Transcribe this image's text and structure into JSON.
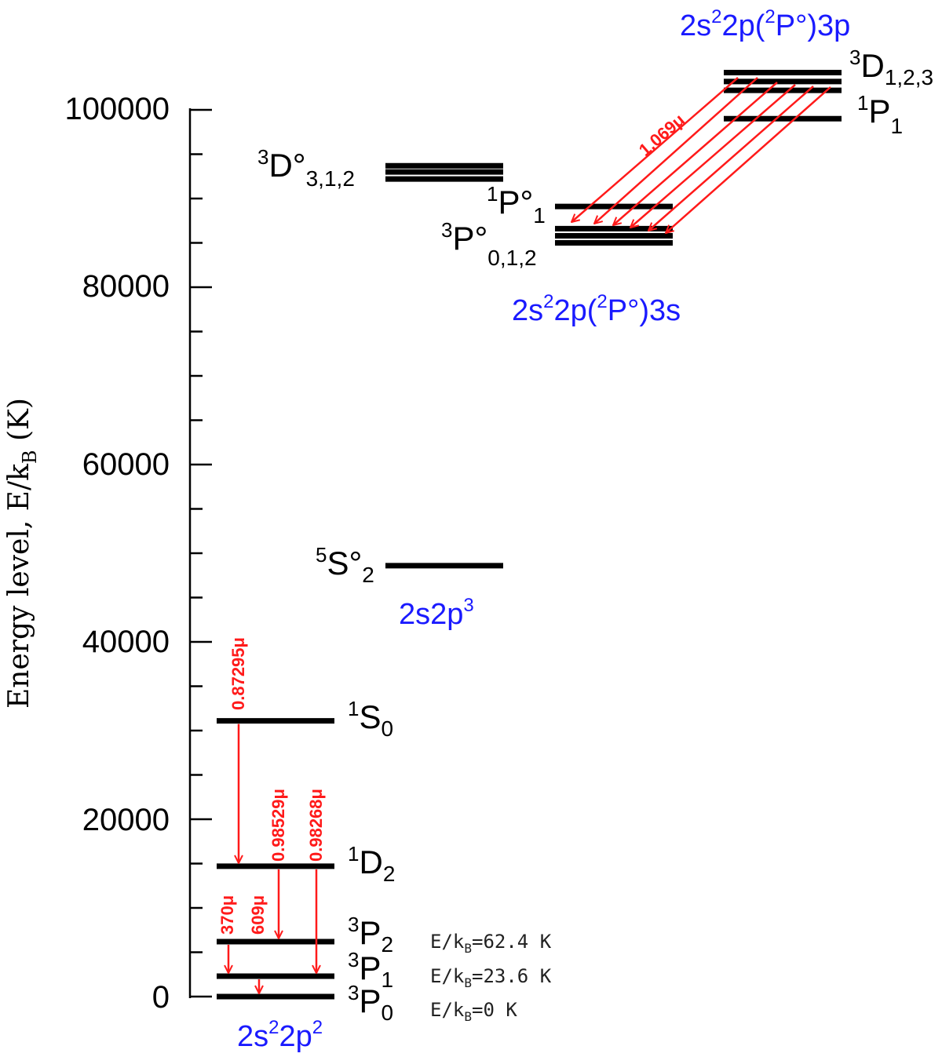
{
  "axis": {
    "ylabel_main": "Energy level, E/k",
    "ylabel_sub": "B",
    "ylabel_unit": " (K)",
    "ticks": [
      "0",
      "20000",
      "40000",
      "60000",
      "80000",
      "100000"
    ],
    "tick_values": [
      0,
      20000,
      40000,
      60000,
      80000,
      100000
    ],
    "ymin": 0,
    "ymax": 100000,
    "minor_step": 5000
  },
  "colors": {
    "level": "#000000",
    "transition": "#ff1a1a",
    "config": "#1a1aff"
  },
  "levels": [
    {
      "id": "3P0",
      "energy": 0,
      "group": "ground"
    },
    {
      "id": "3P1",
      "energy": 2300,
      "group": "ground"
    },
    {
      "id": "3P2",
      "energy": 6200,
      "group": "ground"
    },
    {
      "id": "1D2",
      "energy": 14700,
      "group": "ground"
    },
    {
      "id": "1S0",
      "energy": 31100,
      "group": "ground"
    },
    {
      "id": "5S2",
      "energy": 48600,
      "group": "sp3"
    },
    {
      "id": "3D3",
      "energy": 92200,
      "group": "sp3"
    },
    {
      "id": "3D1",
      "energy": 93000,
      "group": "sp3"
    },
    {
      "id": "3D2",
      "energy": 93700,
      "group": "sp3"
    },
    {
      "id": "3s_a",
      "energy": 85000,
      "group": "3s"
    },
    {
      "id": "3s_b",
      "energy": 85800,
      "group": "3s"
    },
    {
      "id": "3s_c",
      "energy": 86600,
      "group": "3s"
    },
    {
      "id": "1P1_3s",
      "energy": 89100,
      "group": "3s"
    },
    {
      "id": "1P1_3p",
      "energy": 99000,
      "group": "3p"
    },
    {
      "id": "3p_a",
      "energy": 102200,
      "group": "3p"
    },
    {
      "id": "3p_b",
      "energy": 103200,
      "group": "3p"
    },
    {
      "id": "3p_c",
      "energy": 104200,
      "group": "3p"
    }
  ],
  "terms": {
    "3P0": {
      "sup": "3",
      "base": "P",
      "sub": "0"
    },
    "3P1": {
      "sup": "3",
      "base": "P",
      "sub": "1"
    },
    "3P2": {
      "sup": "3",
      "base": "P",
      "sub": "2"
    },
    "1D2": {
      "sup": "1",
      "base": "D",
      "sub": "2"
    },
    "1S0": {
      "sup": "1",
      "base": "S",
      "sub": "0"
    },
    "5S2": {
      "sup": "5",
      "base": "S°",
      "sub": "2"
    },
    "3D_odd": {
      "sup": "3",
      "base": "D°",
      "sub": "3,1,2"
    },
    "1P1_odd": {
      "sup": "1",
      "base": "P°",
      "sub": "1"
    },
    "3P_odd": {
      "sup": "3",
      "base": "P°",
      "sub": "0,1,2"
    },
    "3D_even": {
      "sup": "3",
      "base": "D",
      "sub": "1,2,3"
    },
    "1P1_even": {
      "sup": "1",
      "base": "P",
      "sub": "1"
    }
  },
  "configs": {
    "ground": {
      "a": "2s",
      "a_sup": "2",
      "b": "2p",
      "b_sup": "2",
      "c": ""
    },
    "sp3": {
      "a": "2s2p",
      "a_sup": "3",
      "b": "",
      "b_sup": "",
      "c": ""
    },
    "3s": {
      "a": "2s",
      "a_sup": "2",
      "b": "2p(",
      "b_sup": "2",
      "c": "P°)3s"
    },
    "3p": {
      "a": "2s",
      "a_sup": "2",
      "b": "2p(",
      "b_sup": "2",
      "c": "P°)3p"
    }
  },
  "transitions": {
    "t1": "0.87295μ",
    "t2": "0.98529μ",
    "t3": "0.98268μ",
    "t4": "370μ",
    "t5": "609μ",
    "t6": "1.069μ"
  },
  "notes": {
    "n1_pre": "E/k",
    "n1_sub": "B",
    "n1_post": "=62.4 K",
    "n2_pre": "E/k",
    "n2_sub": "B",
    "n2_post": "=23.6 K",
    "n3_pre": "E/k",
    "n3_sub": "B",
    "n3_post": "=0 K"
  }
}
